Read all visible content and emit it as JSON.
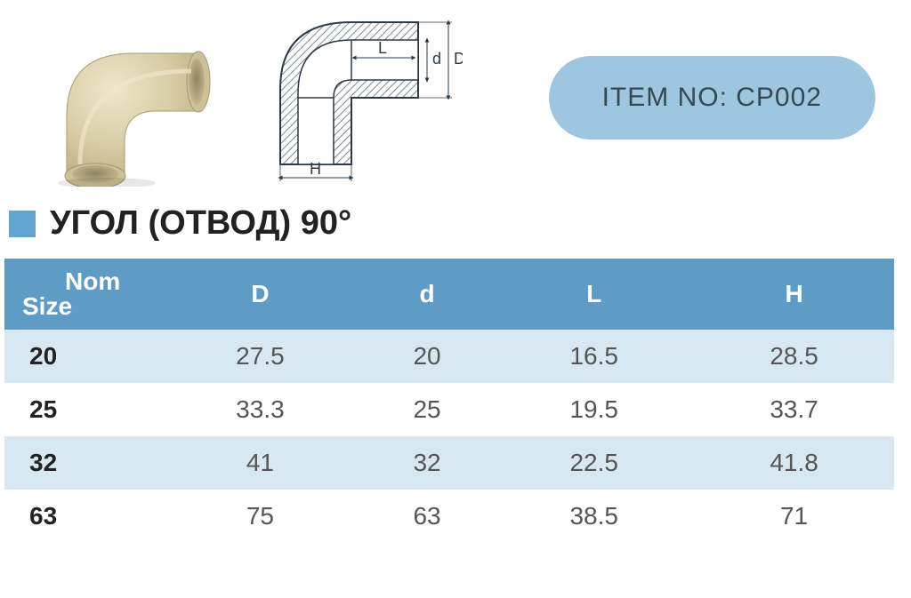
{
  "item_badge": {
    "label": "ITEM  NO: CP002",
    "bg_color": "#9ec6e0",
    "text_color": "#36494f"
  },
  "title": {
    "text": "УГОЛ (ОТВОД) 90°",
    "marker_color": "#61a6cf"
  },
  "schematic_labels": {
    "L": "L",
    "d": "d",
    "D": "D",
    "H": "H"
  },
  "table": {
    "header_bg": "#5e9cc6",
    "header_fg": "#ffffff",
    "row_stripe_color": "#d8e8f3",
    "row_plain_color": "#ffffff",
    "columns": [
      {
        "key": "nom",
        "label_top": "Nom",
        "label_bottom": "Size"
      },
      {
        "key": "D",
        "label": "D"
      },
      {
        "key": "d",
        "label": "d"
      },
      {
        "key": "L",
        "label": "L"
      },
      {
        "key": "H",
        "label": "H"
      }
    ],
    "rows": [
      {
        "nom": "20",
        "D": "27.5",
        "d": "20",
        "L": "16.5",
        "H": "28.5"
      },
      {
        "nom": "25",
        "D": "33.3",
        "d": "25",
        "L": "19.5",
        "H": "33.7"
      },
      {
        "nom": "32",
        "D": "41",
        "d": "32",
        "L": "22.5",
        "H": "41.8"
      },
      {
        "nom": "63",
        "D": "75",
        "d": "63",
        "L": "38.5",
        "H": "71"
      }
    ]
  },
  "photo_colors": {
    "body": "#d8cda6",
    "body_light": "#efe6cb",
    "body_dark": "#b9ac80",
    "hole": "#c9bd94"
  },
  "diagram_colors": {
    "outline": "#2a3a4a",
    "hatch": "#7d8a96",
    "fill": "#ffffff",
    "dim_line": "#2a3a4a"
  }
}
